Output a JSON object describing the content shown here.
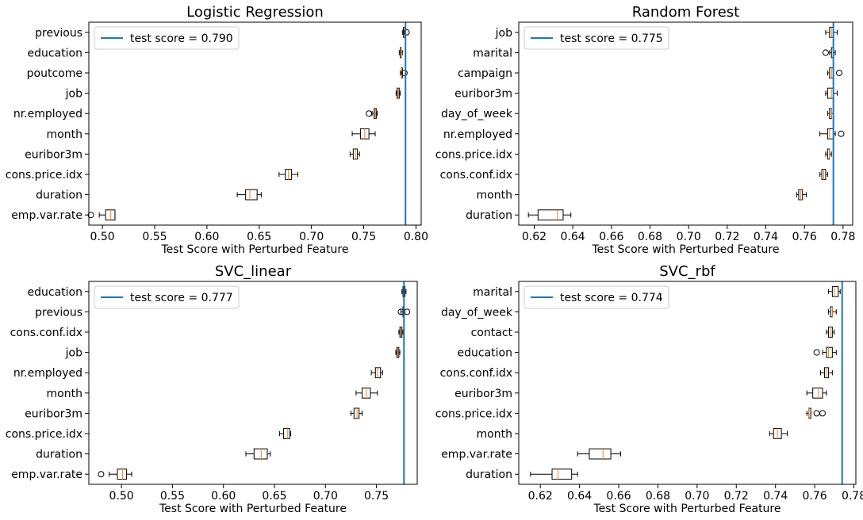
{
  "colors": {
    "score_line": "#1f77b4",
    "median": "#ff7f0e",
    "box_edge": "#000000"
  },
  "chart_data": [
    {
      "type": "box",
      "title": "Logistic Regression",
      "xlabel": "Test Score with Perturbed Feature",
      "xlim": [
        0.487,
        0.805
      ],
      "xticks": [
        0.5,
        0.55,
        0.6,
        0.65,
        0.7,
        0.75,
        0.8
      ],
      "xtick_labels": [
        "0.50",
        "0.55",
        "0.60",
        "0.65",
        "0.70",
        "0.75",
        "0.80"
      ],
      "legend": "test score = 0.790",
      "legend_position": "upper-left",
      "test_score": 0.79,
      "features": [
        {
          "name": "previous",
          "whislo": 0.787,
          "q1": 0.788,
          "median": 0.789,
          "q3": 0.789,
          "whishi": 0.79,
          "fliers": [
            0.791
          ]
        },
        {
          "name": "education",
          "whislo": 0.784,
          "q1": 0.785,
          "median": 0.786,
          "q3": 0.786,
          "whishi": 0.787,
          "fliers": []
        },
        {
          "name": "poutcome",
          "whislo": 0.785,
          "q1": 0.786,
          "median": 0.786,
          "q3": 0.787,
          "whishi": 0.787,
          "fliers": [
            0.789
          ]
        },
        {
          "name": "job",
          "whislo": 0.781,
          "q1": 0.782,
          "median": 0.783,
          "q3": 0.784,
          "whishi": 0.785,
          "fliers": []
        },
        {
          "name": "nr.employed",
          "whislo": 0.758,
          "q1": 0.76,
          "median": 0.761,
          "q3": 0.762,
          "whishi": 0.763,
          "fliers": [
            0.755
          ]
        },
        {
          "name": "month",
          "whislo": 0.739,
          "q1": 0.747,
          "median": 0.751,
          "q3": 0.755,
          "whishi": 0.761,
          "fliers": []
        },
        {
          "name": "euribor3m",
          "whislo": 0.737,
          "q1": 0.74,
          "median": 0.742,
          "q3": 0.744,
          "whishi": 0.746,
          "fliers": []
        },
        {
          "name": "cons.price.idx",
          "whislo": 0.669,
          "q1": 0.675,
          "median": 0.678,
          "q3": 0.681,
          "whishi": 0.687,
          "fliers": []
        },
        {
          "name": "duration",
          "whislo": 0.629,
          "q1": 0.637,
          "median": 0.641,
          "q3": 0.648,
          "whishi": 0.652,
          "fliers": []
        },
        {
          "name": "emp.var.rate",
          "whislo": 0.497,
          "q1": 0.503,
          "median": 0.508,
          "q3": 0.512,
          "whishi": 0.512,
          "fliers": [
            0.489
          ]
        }
      ]
    },
    {
      "type": "box",
      "title": "Random Forest",
      "xlabel": "Test Score with Perturbed Feature",
      "xlim": [
        0.612,
        0.785
      ],
      "xticks": [
        0.62,
        0.64,
        0.66,
        0.68,
        0.7,
        0.72,
        0.74,
        0.76,
        0.78
      ],
      "xtick_labels": [
        "0.62",
        "0.64",
        "0.66",
        "0.68",
        "0.70",
        "0.72",
        "0.74",
        "0.76",
        "0.78"
      ],
      "legend": "test score = 0.775",
      "legend_position": "upper-left",
      "test_score": 0.775,
      "features": [
        {
          "name": "job",
          "whislo": 0.771,
          "q1": 0.773,
          "median": 0.774,
          "q3": 0.775,
          "whishi": 0.777,
          "fliers": []
        },
        {
          "name": "marital",
          "whislo": 0.773,
          "q1": 0.774,
          "median": 0.775,
          "q3": 0.775,
          "whishi": 0.776,
          "fliers": [
            0.771
          ]
        },
        {
          "name": "campaign",
          "whislo": 0.772,
          "q1": 0.773,
          "median": 0.774,
          "q3": 0.775,
          "whishi": 0.775,
          "fliers": [
            0.778
          ]
        },
        {
          "name": "euribor3m",
          "whislo": 0.771,
          "q1": 0.772,
          "median": 0.774,
          "q3": 0.775,
          "whishi": 0.777,
          "fliers": []
        },
        {
          "name": "day_of_week",
          "whislo": 0.772,
          "q1": 0.773,
          "median": 0.774,
          "q3": 0.774,
          "whishi": 0.775,
          "fliers": []
        },
        {
          "name": "nr.employed",
          "whislo": 0.768,
          "q1": 0.772,
          "median": 0.773,
          "q3": 0.775,
          "whishi": 0.776,
          "fliers": [
            0.779
          ]
        },
        {
          "name": "cons.price.idx",
          "whislo": 0.771,
          "q1": 0.772,
          "median": 0.773,
          "q3": 0.773,
          "whishi": 0.774,
          "fliers": []
        },
        {
          "name": "cons.conf.idx",
          "whislo": 0.768,
          "q1": 0.769,
          "median": 0.77,
          "q3": 0.771,
          "whishi": 0.772,
          "fliers": []
        },
        {
          "name": "month",
          "whislo": 0.756,
          "q1": 0.757,
          "median": 0.758,
          "q3": 0.759,
          "whishi": 0.761,
          "fliers": []
        },
        {
          "name": "duration",
          "whislo": 0.617,
          "q1": 0.622,
          "median": 0.632,
          "q3": 0.635,
          "whishi": 0.639,
          "fliers": []
        }
      ]
    },
    {
      "type": "box",
      "title": "SVC_linear",
      "xlabel": "Test Score with Perturbed Feature",
      "xlim": [
        0.468,
        0.79
      ],
      "xticks": [
        0.5,
        0.55,
        0.6,
        0.65,
        0.7,
        0.75
      ],
      "xtick_labels": [
        "0.50",
        "0.55",
        "0.60",
        "0.65",
        "0.70",
        "0.75"
      ],
      "legend": "test score = 0.777",
      "legend_position": "upper-left",
      "test_score": 0.777,
      "features": [
        {
          "name": "education",
          "whislo": 0.775,
          "q1": 0.776,
          "median": 0.777,
          "q3": 0.778,
          "whishi": 0.779,
          "fliers": []
        },
        {
          "name": "previous",
          "whislo": 0.774,
          "q1": 0.776,
          "median": 0.777,
          "q3": 0.777,
          "whishi": 0.778,
          "fliers": [
            0.774,
            0.78
          ]
        },
        {
          "name": "cons.conf.idx",
          "whislo": 0.772,
          "q1": 0.773,
          "median": 0.774,
          "q3": 0.775,
          "whishi": 0.776,
          "fliers": []
        },
        {
          "name": "job",
          "whislo": 0.769,
          "q1": 0.77,
          "median": 0.771,
          "q3": 0.772,
          "whishi": 0.773,
          "fliers": []
        },
        {
          "name": "nr.employed",
          "whislo": 0.745,
          "q1": 0.749,
          "median": 0.751,
          "q3": 0.754,
          "whishi": 0.756,
          "fliers": []
        },
        {
          "name": "month",
          "whislo": 0.73,
          "q1": 0.736,
          "median": 0.74,
          "q3": 0.744,
          "whishi": 0.751,
          "fliers": []
        },
        {
          "name": "euribor3m",
          "whislo": 0.725,
          "q1": 0.728,
          "median": 0.731,
          "q3": 0.733,
          "whishi": 0.736,
          "fliers": []
        },
        {
          "name": "cons.price.idx",
          "whislo": 0.655,
          "q1": 0.659,
          "median": 0.663,
          "q3": 0.665,
          "whishi": 0.666,
          "fliers": []
        },
        {
          "name": "duration",
          "whislo": 0.622,
          "q1": 0.63,
          "median": 0.637,
          "q3": 0.643,
          "whishi": 0.646,
          "fliers": []
        },
        {
          "name": "emp.var.rate",
          "whislo": 0.488,
          "q1": 0.496,
          "median": 0.501,
          "q3": 0.505,
          "whishi": 0.51,
          "fliers": [
            0.48
          ]
        }
      ]
    },
    {
      "type": "box",
      "title": "SVC_rbf",
      "xlabel": "Test Score with Perturbed Feature",
      "xlim": [
        0.609,
        0.781
      ],
      "xticks": [
        0.62,
        0.64,
        0.66,
        0.68,
        0.7,
        0.72,
        0.74,
        0.76,
        0.78
      ],
      "xtick_labels": [
        "0.62",
        "0.64",
        "0.66",
        "0.68",
        "0.70",
        "0.72",
        "0.74",
        "0.76",
        "0.78"
      ],
      "legend": "test score = 0.774",
      "legend_position": "upper-left",
      "test_score": 0.774,
      "features": [
        {
          "name": "marital",
          "whislo": 0.767,
          "q1": 0.769,
          "median": 0.77,
          "q3": 0.772,
          "whishi": 0.773,
          "fliers": []
        },
        {
          "name": "day_of_week",
          "whislo": 0.767,
          "q1": 0.768,
          "median": 0.769,
          "q3": 0.769,
          "whishi": 0.771,
          "fliers": []
        },
        {
          "name": "contact",
          "whislo": 0.766,
          "q1": 0.767,
          "median": 0.768,
          "q3": 0.769,
          "whishi": 0.77,
          "fliers": []
        },
        {
          "name": "education",
          "whislo": 0.764,
          "q1": 0.766,
          "median": 0.767,
          "q3": 0.769,
          "whishi": 0.771,
          "fliers": [
            0.761
          ]
        },
        {
          "name": "cons.conf.idx",
          "whislo": 0.763,
          "q1": 0.765,
          "median": 0.766,
          "q3": 0.767,
          "whishi": 0.769,
          "fliers": []
        },
        {
          "name": "euribor3m",
          "whislo": 0.756,
          "q1": 0.759,
          "median": 0.762,
          "q3": 0.764,
          "whishi": 0.766,
          "fliers": []
        },
        {
          "name": "cons.price.idx",
          "whislo": 0.756,
          "q1": 0.757,
          "median": 0.757,
          "q3": 0.758,
          "whishi": 0.758,
          "fliers": [
            0.761,
            0.764
          ]
        },
        {
          "name": "month",
          "whislo": 0.737,
          "q1": 0.739,
          "median": 0.741,
          "q3": 0.743,
          "whishi": 0.746,
          "fliers": []
        },
        {
          "name": "emp.var.rate",
          "whislo": 0.639,
          "q1": 0.645,
          "median": 0.652,
          "q3": 0.656,
          "whishi": 0.661,
          "fliers": []
        },
        {
          "name": "duration",
          "whislo": 0.615,
          "q1": 0.626,
          "median": 0.629,
          "q3": 0.636,
          "whishi": 0.639,
          "fliers": []
        }
      ]
    }
  ]
}
